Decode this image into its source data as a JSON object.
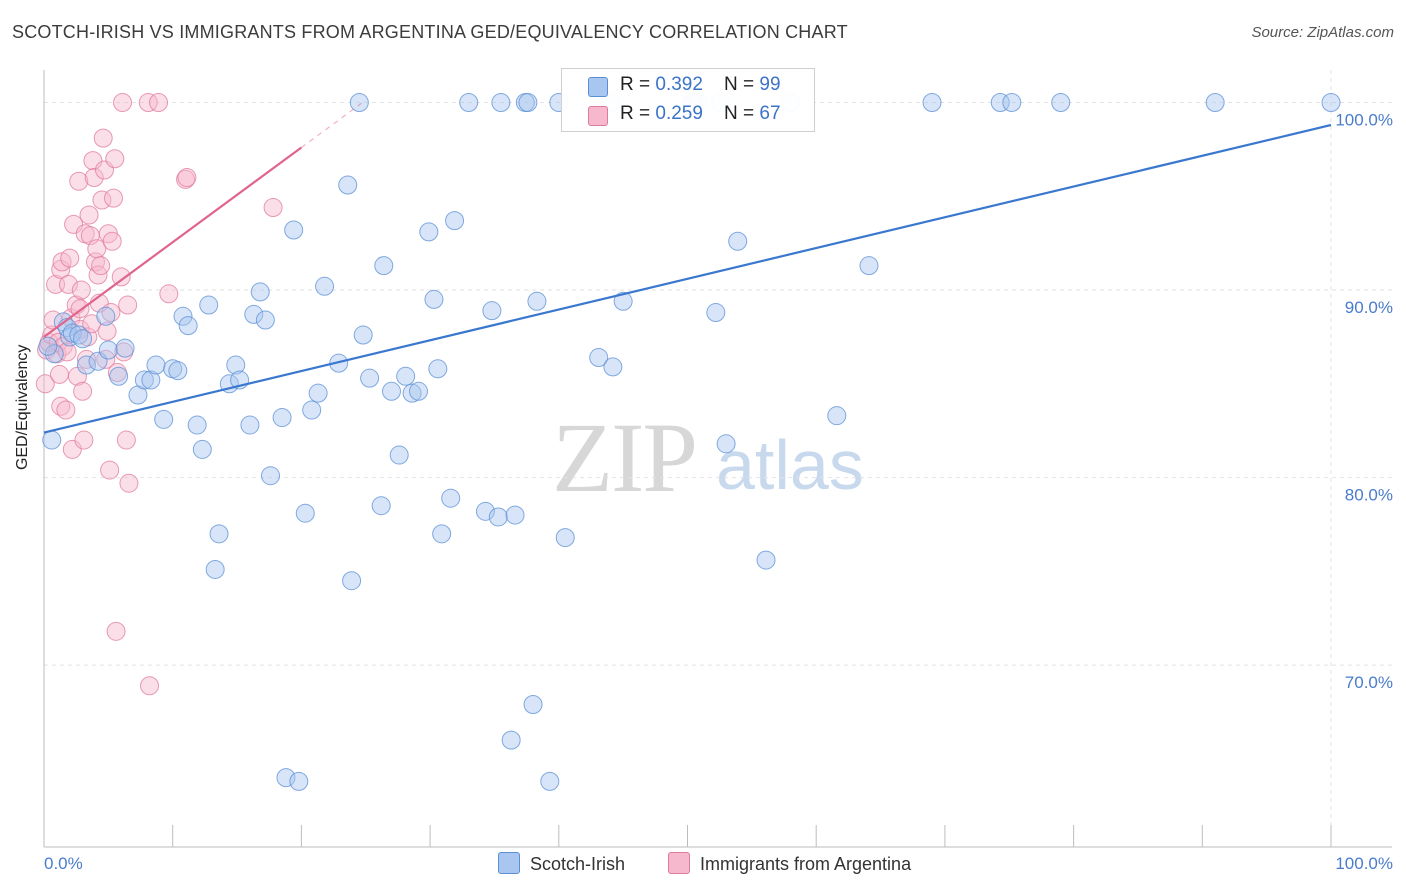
{
  "header": {
    "title": "SCOTCH-IRISH VS IMMIGRANTS FROM ARGENTINA GED/EQUIVALENCY CORRELATION CHART",
    "source": "Source: ZipAtlas.com"
  },
  "watermark": {
    "zip": "ZIP",
    "atlas": "atlas"
  },
  "legend_top": {
    "rows": [
      {
        "r_label": "R = ",
        "r_value": "0.392",
        "n_label": "N = ",
        "n_value": "99"
      },
      {
        "r_label": "R = ",
        "r_value": "0.259",
        "n_label": "N = ",
        "n_value": "67"
      }
    ]
  },
  "legend_bottom": {
    "series1": "Scotch-Irish",
    "series2": "Immigrants from Argentina"
  },
  "colors": {
    "blue_fill": "#a9c6f0",
    "blue_stroke": "#5a8fd6",
    "blue_line": "#3a78d0",
    "pink_fill": "#f6b8cc",
    "pink_stroke": "#e07a9c",
    "pink_line": "#e0648c",
    "grid": "#e2e2e2",
    "axis_text": "#4a7ccc"
  },
  "chart_data": {
    "type": "scatter",
    "title": "SCOTCH-IRISH VS IMMIGRANTS FROM ARGENTINA GED/EQUIVALENCY CORRELATION CHART",
    "xlabel": "",
    "ylabel": "GED/Equivalency",
    "xlim": [
      0,
      100
    ],
    "ylim": [
      60.3,
      101.2
    ],
    "x_tick_labels": [
      "0.0%",
      "100.0%"
    ],
    "y_ticks": [
      70,
      80,
      90,
      100
    ],
    "y_tick_labels": [
      "70.0%",
      "80.0%",
      "90.0%",
      "100.0%"
    ],
    "grid": true,
    "legend_position": "bottom",
    "series": [
      {
        "name": "Scotch-Irish",
        "color": "#5a8fd6",
        "trend": {
          "x": [
            0,
            100
          ],
          "y": [
            82.4,
            98.8
          ]
        },
        "points": [
          [
            0.6,
            82.0
          ],
          [
            0.8,
            86.6
          ],
          [
            1.5,
            88.3
          ],
          [
            1.8,
            88.0
          ],
          [
            2.0,
            87.5
          ],
          [
            2.2,
            87.7
          ],
          [
            2.7,
            87.6
          ],
          [
            3.0,
            87.4
          ],
          [
            3.3,
            86.0
          ],
          [
            4.2,
            86.2
          ],
          [
            4.8,
            88.6
          ],
          [
            5.0,
            86.8
          ],
          [
            5.8,
            85.4
          ],
          [
            6.3,
            86.9
          ],
          [
            7.3,
            84.4
          ],
          [
            7.8,
            85.2
          ],
          [
            8.3,
            85.2
          ],
          [
            8.7,
            86.0
          ],
          [
            9.3,
            83.1
          ],
          [
            10.0,
            85.8
          ],
          [
            10.4,
            85.7
          ],
          [
            10.8,
            88.6
          ],
          [
            11.2,
            88.1
          ],
          [
            11.9,
            82.8
          ],
          [
            12.3,
            81.5
          ],
          [
            12.8,
            89.2
          ],
          [
            13.3,
            75.1
          ],
          [
            13.6,
            77.0
          ],
          [
            14.4,
            85.0
          ],
          [
            14.9,
            86.0
          ],
          [
            15.2,
            85.2
          ],
          [
            16.0,
            82.8
          ],
          [
            16.3,
            88.7
          ],
          [
            16.8,
            89.9
          ],
          [
            17.2,
            88.4
          ],
          [
            17.6,
            80.1
          ],
          [
            18.5,
            83.2
          ],
          [
            18.8,
            64.0
          ],
          [
            19.4,
            93.2
          ],
          [
            19.8,
            63.8
          ],
          [
            20.3,
            78.1
          ],
          [
            20.8,
            83.6
          ],
          [
            21.3,
            84.5
          ],
          [
            21.8,
            90.2
          ],
          [
            22.9,
            86.1
          ],
          [
            23.6,
            95.6
          ],
          [
            23.9,
            74.5
          ],
          [
            24.5,
            100.0
          ],
          [
            24.8,
            87.6
          ],
          [
            25.3,
            85.3
          ],
          [
            26.2,
            78.5
          ],
          [
            26.4,
            91.3
          ],
          [
            27.0,
            84.6
          ],
          [
            27.6,
            81.2
          ],
          [
            28.1,
            85.4
          ],
          [
            28.6,
            84.5
          ],
          [
            29.1,
            84.6
          ],
          [
            29.9,
            93.1
          ],
          [
            30.3,
            89.5
          ],
          [
            30.6,
            85.8
          ],
          [
            30.9,
            77.0
          ],
          [
            31.6,
            78.9
          ],
          [
            31.9,
            93.7
          ],
          [
            33.0,
            100.0
          ],
          [
            34.3,
            78.2
          ],
          [
            34.8,
            88.9
          ],
          [
            35.3,
            77.9
          ],
          [
            35.5,
            100.0
          ],
          [
            36.3,
            66.0
          ],
          [
            36.6,
            78.0
          ],
          [
            37.4,
            100.0
          ],
          [
            37.6,
            100.0
          ],
          [
            38.0,
            67.9
          ],
          [
            38.3,
            89.4
          ],
          [
            39.3,
            63.8
          ],
          [
            40.0,
            100.0
          ],
          [
            40.5,
            76.8
          ],
          [
            43.1,
            86.4
          ],
          [
            44.0,
            100.0
          ],
          [
            44.2,
            85.9
          ],
          [
            45.0,
            89.4
          ],
          [
            50.3,
            100.0
          ],
          [
            50.5,
            100.0
          ],
          [
            50.8,
            100.0
          ],
          [
            52.2,
            88.8
          ],
          [
            52.6,
            100.0
          ],
          [
            53.0,
            81.8
          ],
          [
            53.9,
            92.6
          ],
          [
            56.1,
            75.6
          ],
          [
            58.0,
            100.0
          ],
          [
            61.6,
            83.3
          ],
          [
            64.1,
            91.3
          ],
          [
            69.0,
            100.0
          ],
          [
            74.3,
            100.0
          ],
          [
            75.2,
            100.0
          ],
          [
            79.0,
            100.0
          ],
          [
            91.0,
            100.0
          ],
          [
            100.0,
            100.0
          ],
          [
            0.3,
            87.0
          ]
        ]
      },
      {
        "name": "Immigrants from Argentina",
        "color": "#e07a9c",
        "trend": {
          "x": [
            0,
            20
          ],
          "y": [
            87.5,
            97.6
          ]
        },
        "points": [
          [
            0.1,
            85.0
          ],
          [
            0.2,
            86.8
          ],
          [
            0.4,
            87.2
          ],
          [
            0.6,
            87.6
          ],
          [
            0.7,
            88.4
          ],
          [
            0.9,
            90.3
          ],
          [
            1.0,
            86.6
          ],
          [
            1.1,
            87.2
          ],
          [
            1.2,
            85.5
          ],
          [
            1.3,
            83.8
          ],
          [
            1.3,
            91.1
          ],
          [
            1.4,
            91.5
          ],
          [
            1.5,
            87.0
          ],
          [
            1.7,
            83.6
          ],
          [
            1.8,
            86.7
          ],
          [
            1.9,
            90.3
          ],
          [
            2.0,
            91.7
          ],
          [
            2.1,
            88.5
          ],
          [
            2.2,
            81.5
          ],
          [
            2.3,
            93.5
          ],
          [
            2.5,
            89.2
          ],
          [
            2.6,
            85.4
          ],
          [
            2.7,
            95.8
          ],
          [
            2.8,
            89.0
          ],
          [
            2.8,
            87.9
          ],
          [
            2.9,
            90.0
          ],
          [
            3.0,
            84.6
          ],
          [
            3.1,
            82.0
          ],
          [
            3.2,
            93.0
          ],
          [
            3.3,
            86.3
          ],
          [
            3.4,
            87.5
          ],
          [
            3.5,
            94.0
          ],
          [
            3.6,
            92.9
          ],
          [
            3.7,
            88.2
          ],
          [
            3.8,
            96.9
          ],
          [
            3.9,
            96.0
          ],
          [
            4.0,
            91.5
          ],
          [
            4.1,
            92.2
          ],
          [
            4.2,
            90.8
          ],
          [
            4.3,
            89.3
          ],
          [
            4.4,
            91.3
          ],
          [
            4.5,
            94.8
          ],
          [
            4.6,
            98.1
          ],
          [
            4.7,
            96.4
          ],
          [
            4.8,
            86.3
          ],
          [
            4.9,
            87.8
          ],
          [
            5.0,
            93.0
          ],
          [
            5.1,
            80.4
          ],
          [
            5.2,
            88.8
          ],
          [
            5.3,
            92.6
          ],
          [
            5.4,
            94.9
          ],
          [
            5.5,
            97.0
          ],
          [
            5.6,
            71.8
          ],
          [
            5.7,
            85.6
          ],
          [
            6.0,
            90.7
          ],
          [
            6.1,
            100.0
          ],
          [
            6.2,
            86.7
          ],
          [
            6.4,
            82.0
          ],
          [
            6.5,
            89.2
          ],
          [
            6.6,
            79.7
          ],
          [
            8.1,
            100.0
          ],
          [
            8.2,
            68.9
          ],
          [
            8.9,
            100.0
          ],
          [
            9.7,
            89.8
          ],
          [
            11.0,
            95.9
          ],
          [
            11.1,
            96.0
          ],
          [
            17.8,
            94.4
          ]
        ]
      }
    ]
  }
}
